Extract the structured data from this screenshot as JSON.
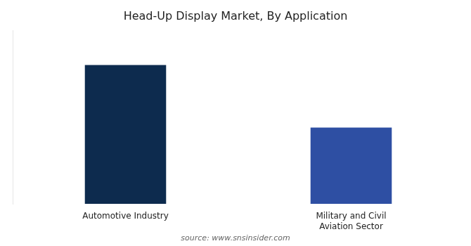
{
  "chart_data": {
    "type": "bar",
    "title": "Head-Up Display Market, By Application",
    "categories": [
      "Automotive Industry",
      "Military and Civil\nAviation Sector"
    ],
    "values": [
      100,
      55
    ],
    "colors": [
      "#0d2b4e",
      "#2e4fa3"
    ],
    "ylim": [
      0,
      125
    ],
    "grid": false,
    "tick_labels": "x",
    "annotations": [
      "source: www.snsinsider.com"
    ]
  }
}
